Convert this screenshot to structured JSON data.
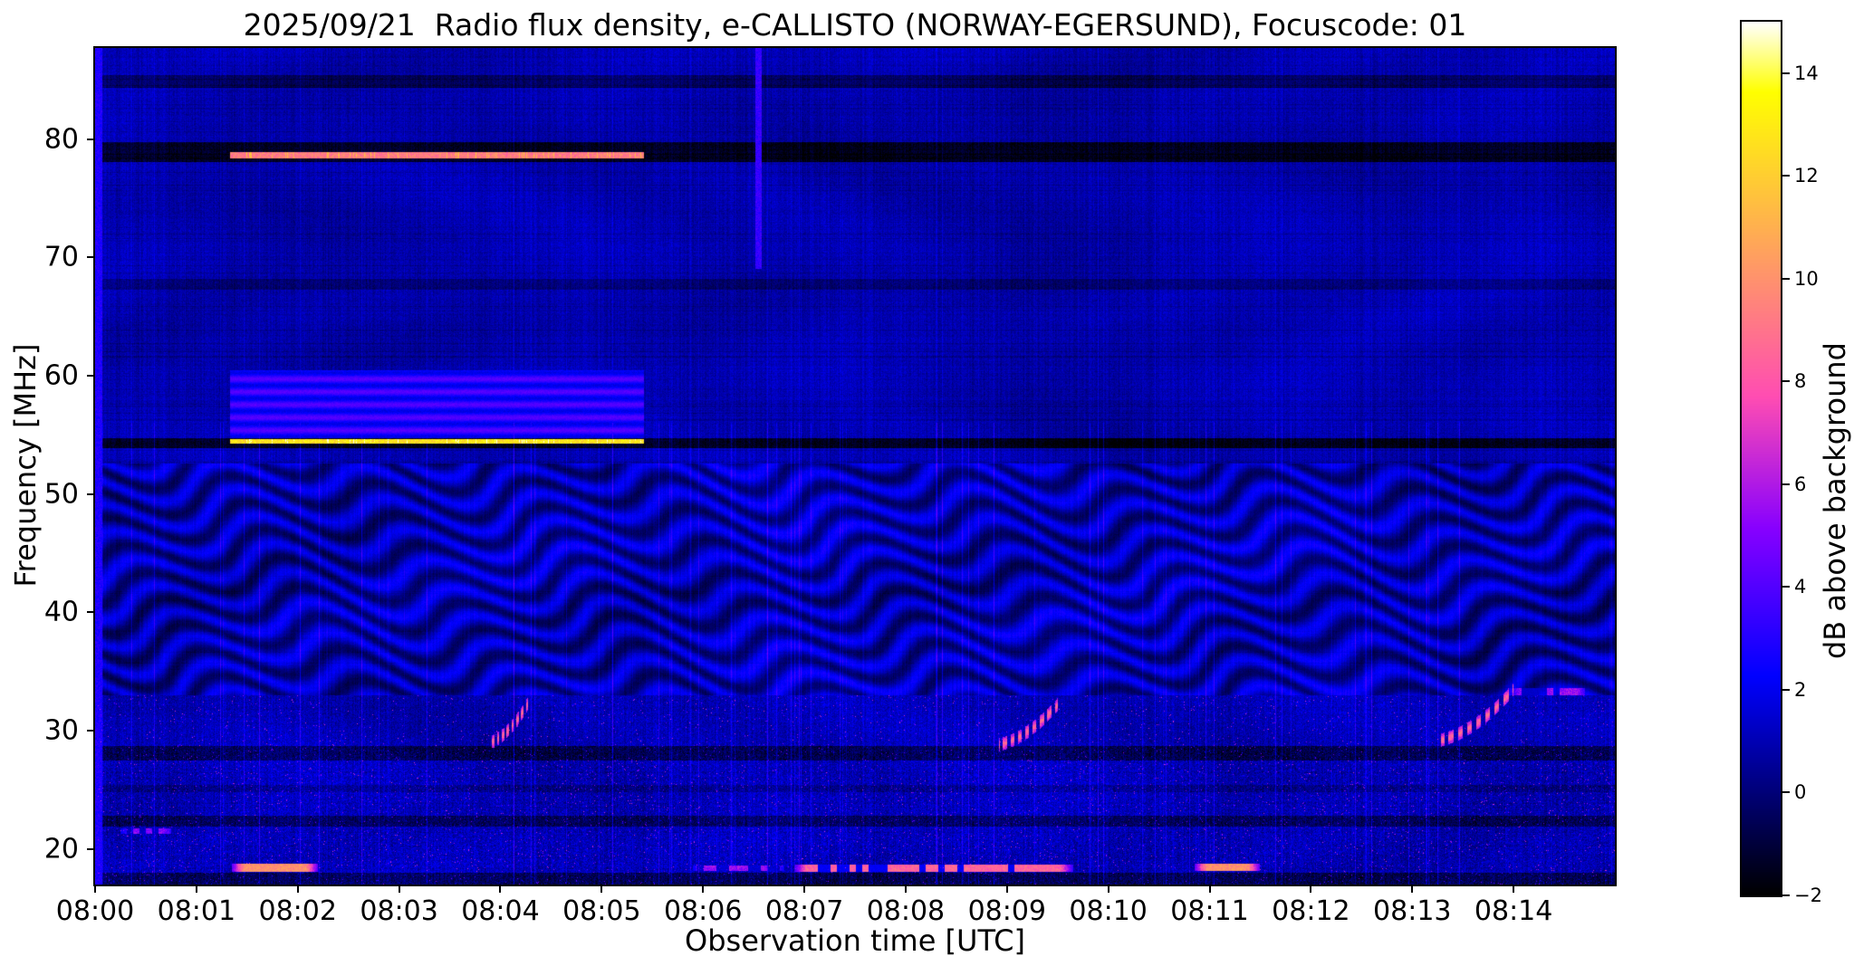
{
  "chart_data": {
    "type": "heatmap",
    "title": "2025/09/21  Radio flux density, e-CALLISTO (NORWAY-EGERSUND), Focuscode: 01",
    "xlabel": "Observation time [UTC]",
    "ylabel": "Frequency [MHz]",
    "x_start_utc": "08:00",
    "x_range_minutes": [
      0,
      15
    ],
    "x_tick_labels": [
      "08:00",
      "08:01",
      "08:02",
      "08:03",
      "08:04",
      "08:05",
      "08:06",
      "08:07",
      "08:08",
      "08:09",
      "08:10",
      "08:11",
      "08:12",
      "08:13",
      "08:14"
    ],
    "y_range_mhz": [
      17.0,
      87.7
    ],
    "y_ticks_mhz": [
      20,
      30,
      40,
      50,
      60,
      70,
      80
    ],
    "colorbar": {
      "label": "dB above background",
      "min": -2,
      "max": 15,
      "ticks": [
        -2,
        0,
        2,
        4,
        6,
        8,
        10,
        12,
        14
      ],
      "colormap": "gnuplot2"
    },
    "noise_regions": [
      {
        "f": [
          52.6,
          87.7
        ],
        "base_db": 0.35,
        "noise_db": 1.0,
        "speckle_prob": 0.0,
        "speckle_db": [
          0,
          0
        ]
      },
      {
        "f": [
          33.0,
          52.6
        ],
        "base_db": 0.0,
        "noise_db": 0.55,
        "speckle_prob": 0.0,
        "speckle_db": [
          0,
          0
        ]
      },
      {
        "f": [
          28.8,
          33.0
        ],
        "base_db": 0.25,
        "noise_db": 1.5,
        "speckle_prob": 0.012,
        "speckle_db": [
          3.5,
          7.0
        ]
      },
      {
        "f": [
          17.0,
          28.8
        ],
        "base_db": 0.15,
        "noise_db": 1.8,
        "speckle_prob": 0.02,
        "speckle_db": [
          3.0,
          7.0
        ]
      }
    ],
    "features": [
      {
        "type": "wavy_band",
        "f": [
          33.0,
          52.6
        ],
        "period_mhz": 2.4,
        "peak_db": 2.6,
        "wobble_mhz": 1.35
      },
      {
        "type": "dark_row",
        "f": [
          53.9,
          54.75
        ],
        "db": -2.4
      },
      {
        "type": "dark_row",
        "f": [
          78.05,
          79.75
        ],
        "db": -2.3
      },
      {
        "type": "dark_row",
        "f": [
          84.3,
          85.4
        ],
        "db": -1.3
      },
      {
        "type": "dark_row",
        "f": [
          67.3,
          68.2
        ],
        "db": -0.9
      },
      {
        "type": "dark_row",
        "f": [
          27.5,
          28.7
        ],
        "db": -1.6
      },
      {
        "type": "dark_row",
        "f": [
          21.9,
          22.8
        ],
        "db": -1.5
      },
      {
        "type": "dark_row",
        "f": [
          24.8,
          25.4
        ],
        "db": -0.7
      },
      {
        "type": "dark_row",
        "f": [
          17.0,
          18.0
        ],
        "db": -1.6
      },
      {
        "type": "bright_band",
        "t": [
          1.33,
          5.42
        ],
        "f": [
          54.75,
          60.45
        ],
        "db": 2.6,
        "striation_db": 1.1
      },
      {
        "type": "bright_line",
        "t": [
          1.33,
          5.42
        ],
        "f": [
          54.25,
          54.68
        ],
        "db": 11.5,
        "flicker_db": 2.5
      },
      {
        "type": "bright_line",
        "t": [
          1.33,
          5.42
        ],
        "f": [
          78.38,
          78.88
        ],
        "db": 8.2,
        "flicker_db": 2.2
      },
      {
        "type": "drift_burst",
        "t": [
          3.9,
          4.28
        ],
        "f": [
          29.0,
          32.4
        ],
        "db": 8.0
      },
      {
        "type": "drift_burst",
        "t": [
          8.92,
          9.5
        ],
        "f": [
          28.8,
          32.2
        ],
        "db": 8.0
      },
      {
        "type": "drift_burst",
        "t": [
          13.28,
          14.0
        ],
        "f": [
          29.2,
          33.5
        ],
        "db": 8.0
      },
      {
        "type": "patch",
        "t": [
          1.35,
          2.2
        ],
        "f": [
          18.1,
          18.75
        ],
        "db": 10.0,
        "gappy": false
      },
      {
        "type": "patch",
        "t": [
          5.9,
          6.8
        ],
        "f": [
          18.15,
          18.6
        ],
        "db": 5.5,
        "gappy": true
      },
      {
        "type": "patch",
        "t": [
          6.9,
          9.65
        ],
        "f": [
          18.1,
          18.7
        ],
        "db": 8.5,
        "gappy": true
      },
      {
        "type": "patch",
        "t": [
          10.85,
          11.5
        ],
        "f": [
          18.15,
          18.75
        ],
        "db": 10.0,
        "gappy": false
      },
      {
        "type": "patch",
        "t": [
          0.25,
          0.8
        ],
        "f": [
          21.3,
          21.75
        ],
        "db": 5.0,
        "gappy": true
      },
      {
        "type": "patch",
        "t": [
          13.95,
          14.75
        ],
        "f": [
          33.0,
          33.6
        ],
        "db": 5.5,
        "gappy": true
      },
      {
        "type": "vstreak",
        "t": 6.55,
        "f": [
          69.0,
          87.7
        ],
        "db": 2.8,
        "halfwidth_min": 0.03
      },
      {
        "type": "vstreak",
        "t": 0.03,
        "f": [
          17.0,
          87.7
        ],
        "db": 2.3,
        "halfwidth_min": 0.04
      }
    ]
  }
}
